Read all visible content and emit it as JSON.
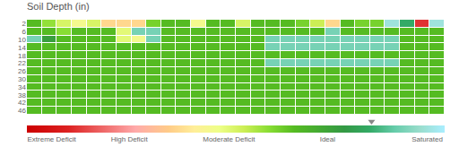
{
  "chart_data": {
    "type": "heatmap",
    "title": "Soil Depth (in)",
    "y": [
      2,
      6,
      10,
      14,
      18,
      22,
      26,
      30,
      34,
      38,
      42,
      46
    ],
    "yticks": [
      2,
      6,
      10,
      14,
      18,
      22,
      26,
      30,
      34,
      38,
      42,
      46
    ],
    "tick_labels": "y",
    "grid": false,
    "zlim": [
      0.0,
      1.0
    ],
    "colorscale": [
      [
        0.0,
        "#cc0000"
      ],
      [
        0.1,
        "#dd2222"
      ],
      [
        0.18,
        "#ee6666"
      ],
      [
        0.26,
        "#ffaaaa"
      ],
      [
        0.34,
        "#ffcc88"
      ],
      [
        0.4,
        "#ffee99"
      ],
      [
        0.46,
        "#eeff88"
      ],
      [
        0.52,
        "#ccee55"
      ],
      [
        0.58,
        "#88dd33"
      ],
      [
        0.64,
        "#55bb22"
      ],
      [
        0.7,
        "#44aa33"
      ],
      [
        0.76,
        "#339944"
      ],
      [
        0.82,
        "#33aa66"
      ],
      [
        0.88,
        "#66ccaa"
      ],
      [
        0.94,
        "#99ddcc"
      ],
      [
        1.0,
        "#aaeeff"
      ]
    ],
    "colorbar_ticks": [
      {
        "value": 0.0,
        "label": "Extreme Deficit"
      },
      {
        "value": 0.2,
        "label": "High Deficit"
      },
      {
        "value": 0.42,
        "label": "Moderate Deficit"
      },
      {
        "value": 0.7,
        "label": "Ideal"
      },
      {
        "value": 0.92,
        "label": "Saturated"
      }
    ],
    "marker_value": 0.825,
    "cells": [
      [
        0.64,
        0.57,
        0.5,
        0.44,
        0.5,
        0.36,
        0.36,
        0.36,
        0.6,
        0.64,
        0.64,
        0.44,
        0.64,
        0.64,
        0.5,
        0.64,
        0.64,
        0.64,
        0.6,
        0.52,
        0.36,
        0.64,
        0.6,
        0.6,
        0.96,
        0.82,
        0.12,
        0.96
      ],
      [
        0.64,
        0.64,
        0.58,
        0.64,
        0.64,
        0.64,
        0.48,
        0.9,
        0.9,
        0.64,
        0.64,
        0.64,
        0.64,
        0.64,
        0.64,
        0.64,
        0.64,
        0.64,
        0.64,
        0.64,
        0.9,
        0.64,
        0.64,
        0.64,
        0.64,
        0.64,
        0.64,
        0.64
      ],
      [
        0.9,
        0.74,
        0.64,
        0.64,
        0.64,
        0.64,
        0.48,
        0.44,
        0.9,
        0.64,
        0.64,
        0.64,
        0.64,
        0.64,
        0.64,
        0.64,
        0.9,
        0.9,
        0.9,
        0.9,
        0.9,
        0.9,
        0.9,
        0.9,
        0.9,
        0.64,
        0.64,
        0.64
      ],
      [
        0.64,
        0.64,
        0.64,
        0.64,
        0.64,
        0.64,
        0.64,
        0.64,
        0.64,
        0.64,
        0.64,
        0.64,
        0.64,
        0.64,
        0.64,
        0.64,
        0.9,
        0.9,
        0.9,
        0.9,
        0.9,
        0.9,
        0.9,
        0.9,
        0.9,
        0.64,
        0.64,
        0.64
      ],
      [
        0.64,
        0.64,
        0.64,
        0.64,
        0.64,
        0.64,
        0.64,
        0.64,
        0.64,
        0.64,
        0.64,
        0.64,
        0.64,
        0.64,
        0.64,
        0.64,
        0.64,
        0.64,
        0.64,
        0.64,
        0.64,
        0.64,
        0.64,
        0.64,
        0.64,
        0.64,
        0.64,
        0.64
      ],
      [
        0.64,
        0.64,
        0.64,
        0.64,
        0.64,
        0.64,
        0.64,
        0.64,
        0.64,
        0.64,
        0.64,
        0.64,
        0.64,
        0.64,
        0.64,
        0.64,
        0.9,
        0.9,
        0.9,
        0.9,
        0.9,
        0.9,
        0.9,
        0.9,
        0.9,
        0.64,
        0.64,
        0.64
      ],
      [
        0.64,
        0.64,
        0.64,
        0.64,
        0.64,
        0.64,
        0.64,
        0.64,
        0.64,
        0.64,
        0.64,
        0.64,
        0.64,
        0.64,
        0.64,
        0.64,
        0.64,
        0.64,
        0.64,
        0.64,
        0.64,
        0.64,
        0.64,
        0.64,
        0.64,
        0.64,
        0.64,
        0.64
      ],
      [
        0.64,
        0.64,
        0.64,
        0.64,
        0.64,
        0.64,
        0.64,
        0.64,
        0.64,
        0.64,
        0.64,
        0.64,
        0.64,
        0.64,
        0.64,
        0.64,
        0.64,
        0.64,
        0.64,
        0.64,
        0.64,
        0.64,
        0.64,
        0.64,
        0.64,
        0.64,
        0.64,
        0.64
      ],
      [
        0.64,
        0.64,
        0.64,
        0.64,
        0.64,
        0.64,
        0.64,
        0.64,
        0.64,
        0.64,
        0.64,
        0.64,
        0.64,
        0.64,
        0.64,
        0.64,
        0.64,
        0.64,
        0.64,
        0.64,
        0.64,
        0.64,
        0.64,
        0.64,
        0.64,
        0.64,
        0.64,
        0.64
      ],
      [
        0.64,
        0.64,
        0.64,
        0.64,
        0.64,
        0.64,
        0.64,
        0.64,
        0.64,
        0.64,
        0.64,
        0.64,
        0.64,
        0.64,
        0.64,
        0.64,
        0.64,
        0.64,
        0.64,
        0.64,
        0.64,
        0.64,
        0.64,
        0.64,
        0.64,
        0.64,
        0.64,
        0.64
      ],
      [
        0.64,
        0.64,
        0.64,
        0.64,
        0.64,
        0.64,
        0.64,
        0.64,
        0.64,
        0.64,
        0.64,
        0.64,
        0.64,
        0.64,
        0.64,
        0.64,
        0.64,
        0.64,
        0.64,
        0.64,
        0.64,
        0.64,
        0.64,
        0.64,
        0.64,
        0.64,
        0.64,
        0.64
      ],
      [
        0.64,
        0.64,
        0.64,
        0.64,
        0.64,
        0.64,
        0.64,
        0.64,
        0.64,
        0.64,
        0.64,
        0.64,
        0.64,
        0.64,
        0.64,
        0.64,
        0.64,
        0.64,
        0.64,
        0.64,
        0.64,
        0.64,
        0.64,
        0.64,
        0.64,
        0.64,
        0.64,
        0.64
      ]
    ]
  }
}
